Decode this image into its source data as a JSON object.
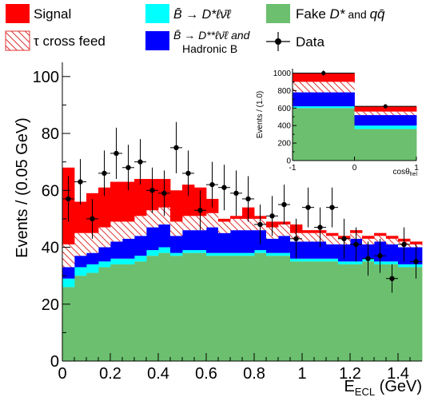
{
  "chart_data": [
    {
      "type": "stacked_histogram",
      "xlabel": "E",
      "xlabel_sub": "ECL",
      "xlabel_unit": "(GeV)",
      "ylabel": "Events / (0.05 GeV)",
      "xlim": [
        0,
        1.5
      ],
      "ylim": [
        0,
        105
      ],
      "bin_width": 0.05,
      "x_ticks": [
        0,
        0.2,
        0.4,
        0.6,
        0.8,
        1,
        1.2,
        1.4
      ],
      "x_tick_labels": [
        "0",
        "0.2",
        "0.4",
        "0.6",
        "0.8",
        "1",
        "1.2",
        "1.4"
      ],
      "y_ticks": [
        0,
        20,
        40,
        60,
        80,
        100
      ],
      "y_tick_labels": [
        "0",
        "20",
        "40",
        "60",
        "80",
        "100"
      ],
      "series": [
        {
          "key": "fake",
          "color": "#6bbf6e",
          "values": [
            26,
            30,
            31,
            33,
            34,
            34,
            35,
            37,
            38,
            37,
            38,
            38,
            37,
            37,
            37,
            37,
            38,
            37,
            37,
            35,
            35,
            35,
            35,
            34,
            34,
            35,
            34,
            34,
            33,
            33
          ]
        },
        {
          "key": "dstarlnu",
          "color": "#00ffff",
          "values": [
            3,
            3,
            3,
            2,
            2,
            2,
            2,
            2,
            2,
            1,
            1,
            1,
            1,
            1,
            1,
            1,
            1,
            1,
            1,
            1,
            1,
            1,
            1,
            1,
            1,
            1,
            1,
            1,
            1,
            1
          ]
        },
        {
          "key": "dstarstar",
          "color": "#0000ff",
          "values": [
            4,
            4,
            4,
            5,
            6,
            7,
            7,
            8,
            8,
            6,
            7,
            7,
            9,
            7,
            8,
            8,
            7,
            5,
            6,
            6,
            6,
            6,
            5,
            6,
            8,
            5,
            7,
            6,
            6,
            6
          ]
        },
        {
          "key": "taucross",
          "color": "#e03030",
          "hatched": true,
          "values": [
            8,
            8,
            7,
            7,
            7,
            6,
            7,
            6,
            6,
            5,
            5,
            5,
            5,
            4,
            4,
            4,
            4,
            4,
            4,
            3,
            3,
            3,
            3,
            2,
            2,
            2,
            2,
            2,
            2,
            1
          ]
        },
        {
          "key": "signal",
          "color": "#ff0000",
          "values": [
            27,
            11,
            14,
            14,
            14,
            14,
            13,
            11,
            10,
            11,
            11,
            10,
            5,
            1,
            1,
            4,
            1,
            2,
            1,
            3,
            1,
            1,
            1,
            1,
            1,
            1,
            1,
            1,
            1,
            1
          ]
        }
      ],
      "data_points": {
        "key": "data",
        "x": [
          0.025,
          0.075,
          0.125,
          0.175,
          0.225,
          0.275,
          0.325,
          0.375,
          0.425,
          0.475,
          0.525,
          0.575,
          0.625,
          0.675,
          0.725,
          0.775,
          0.825,
          0.875,
          0.925,
          0.975,
          1.025,
          1.075,
          1.125,
          1.175,
          1.225,
          1.275,
          1.325,
          1.375,
          1.425,
          1.475
        ],
        "y": [
          57,
          63,
          50,
          66,
          73,
          68,
          70,
          60,
          59,
          75,
          66,
          53,
          62,
          61,
          59,
          57,
          48,
          51,
          55,
          43,
          54,
          47,
          54,
          43,
          41,
          36,
          37,
          29,
          41,
          35
        ],
        "yerr": [
          8,
          8,
          7,
          8,
          9,
          8,
          8,
          8,
          8,
          9,
          8,
          7,
          8,
          8,
          8,
          8,
          7,
          7,
          7,
          7,
          7,
          7,
          7,
          7,
          6,
          6,
          6,
          5,
          6,
          6
        ]
      }
    },
    {
      "type": "stacked_histogram",
      "xlabel": "cosθ",
      "xlabel_sub": "hel",
      "ylabel": "Events / (1.0)",
      "xlim": [
        -1,
        1
      ],
      "ylim": [
        0,
        1050
      ],
      "x_ticks": [
        -1,
        0,
        1
      ],
      "x_tick_labels": [
        "-1",
        "0",
        "1"
      ],
      "y_ticks": [
        0,
        200,
        400,
        600,
        800,
        1000
      ],
      "y_tick_labels": [
        "0",
        "200",
        "400",
        "600",
        "800",
        "1000"
      ],
      "bins": [
        -1,
        0,
        1
      ],
      "series": [
        {
          "key": "fake",
          "color": "#6bbf6e",
          "values": [
            600,
            360
          ]
        },
        {
          "key": "dstarlnu",
          "color": "#00ffff",
          "values": [
            20,
            40
          ]
        },
        {
          "key": "dstarstar",
          "color": "#0000ff",
          "values": [
            160,
            120
          ]
        },
        {
          "key": "taucross",
          "color": "#e03030",
          "hatched": true,
          "values": [
            120,
            40
          ]
        },
        {
          "key": "signal",
          "color": "#ff0000",
          "values": [
            100,
            60
          ]
        }
      ],
      "data_points": {
        "x": [
          -0.5,
          0.5
        ],
        "y": [
          1000,
          620
        ],
        "yerr": [
          30,
          25
        ]
      }
    }
  ],
  "legend": {
    "placement": "top",
    "items": [
      {
        "key": "signal",
        "label": "Signal",
        "color": "#ff0000",
        "marker": "box"
      },
      {
        "key": "dstarlnu",
        "label": "B̄ → D*ℓν̄ℓ",
        "color": "#00ffff",
        "marker": "box"
      },
      {
        "key": "fake",
        "label_main": "Fake ",
        "label_dstar": "D*",
        "label_and": " and ",
        "label_qq": "qq̄",
        "color": "#6bbf6e",
        "marker": "box"
      },
      {
        "key": "taucross",
        "label": "τ cross feed",
        "color": "#e03030",
        "marker": "hatched"
      },
      {
        "key": "dstarstar",
        "label_line1": "B̄ → D**ℓν̄ℓ and",
        "label_line2": "Hadronic B",
        "color": "#0000ff",
        "marker": "box"
      },
      {
        "key": "data",
        "label": "Data",
        "color": "#000000",
        "marker": "point"
      }
    ]
  }
}
